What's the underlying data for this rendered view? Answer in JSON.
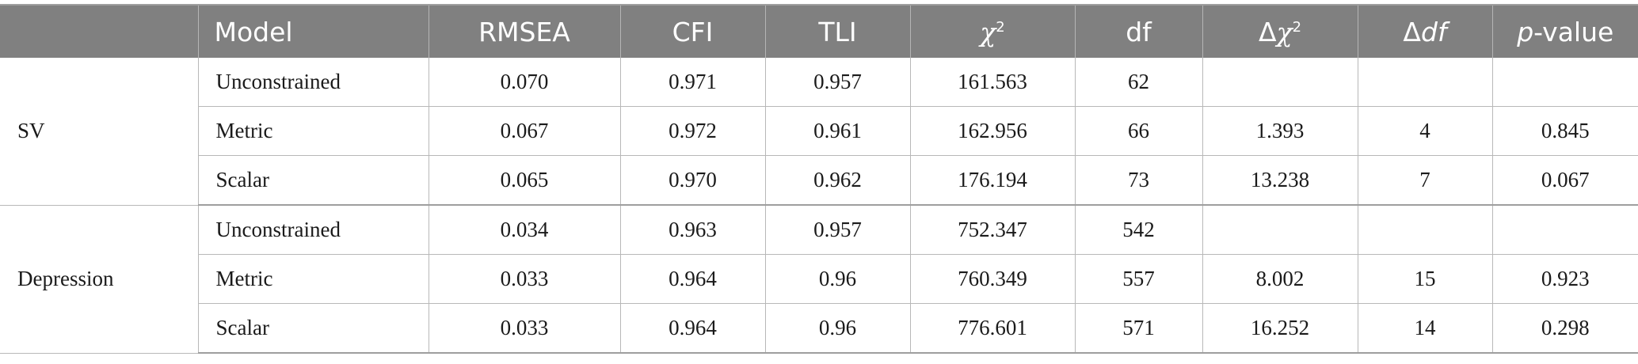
{
  "table": {
    "headers": {
      "group": "",
      "model": "Model",
      "rmsea": "RMSEA",
      "cfi": "CFI",
      "tli": "TLI",
      "chi2_symbol": "χ",
      "chi2_sup": "2",
      "df": "df",
      "dchi2_delta": "Δ",
      "dchi2_symbol": "χ",
      "dchi2_sup": "2",
      "ddf_delta": "Δ",
      "ddf_df": "df",
      "p_p": "p",
      "p_rest": "-value"
    },
    "groups": [
      {
        "name": "SV",
        "rows": [
          {
            "model": "Unconstrained",
            "rmsea": "0.070",
            "cfi": "0.971",
            "tli": "0.957",
            "chi2": "161.563",
            "df": "62",
            "dchi2": "",
            "ddf": "",
            "p": ""
          },
          {
            "model": "Metric",
            "rmsea": "0.067",
            "cfi": "0.972",
            "tli": "0.961",
            "chi2": "162.956",
            "df": "66",
            "dchi2": "1.393",
            "ddf": "4",
            "p": "0.845"
          },
          {
            "model": "Scalar",
            "rmsea": "0.065",
            "cfi": "0.970",
            "tli": "0.962",
            "chi2": "176.194",
            "df": "73",
            "dchi2": "13.238",
            "ddf": "7",
            "p": "0.067"
          }
        ]
      },
      {
        "name": "Depression",
        "rows": [
          {
            "model": "Unconstrained",
            "rmsea": "0.034",
            "cfi": "0.963",
            "tli": "0.957",
            "chi2": "752.347",
            "df": "542",
            "dchi2": "",
            "ddf": "",
            "p": ""
          },
          {
            "model": "Metric",
            "rmsea": "0.033",
            "cfi": "0.964",
            "tli": "0.96",
            "chi2": "760.349",
            "df": "557",
            "dchi2": "8.002",
            "ddf": "15",
            "p": "0.923"
          },
          {
            "model": "Scalar",
            "rmsea": "0.033",
            "cfi": "0.964",
            "tli": "0.96",
            "chi2": "776.601",
            "df": "571",
            "dchi2": "16.252",
            "ddf": "14",
            "p": "0.298"
          }
        ]
      }
    ]
  }
}
